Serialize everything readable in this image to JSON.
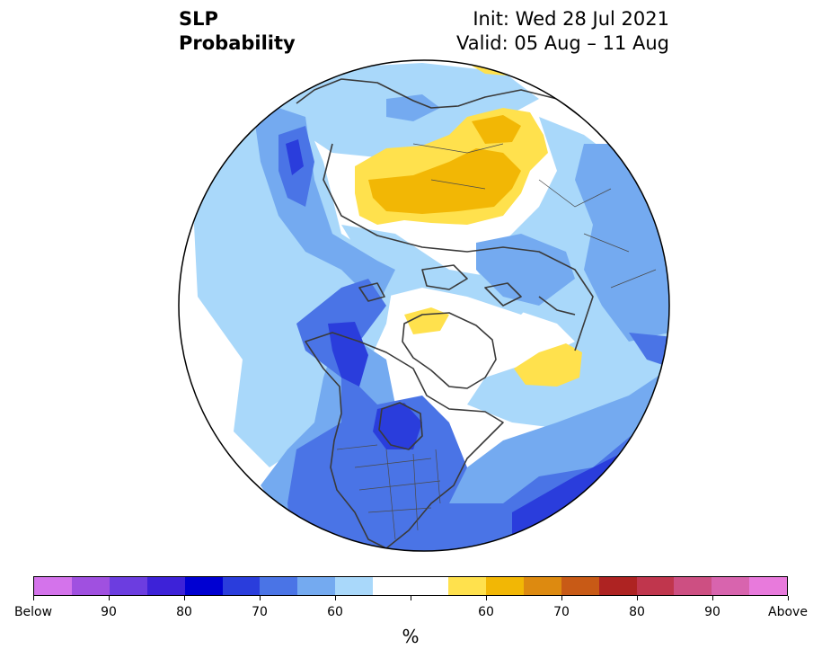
{
  "title": {
    "left_line1": "SLP",
    "left_line2": "Probability",
    "right_line1": "Init: Wed 28 Jul 2021",
    "right_line2": "Valid: 05 Aug – 11 Aug"
  },
  "colorbar": {
    "colors": [
      "#d473eb",
      "#a050e0",
      "#6c3de0",
      "#3d22d8",
      "#0000d2",
      "#2a3ddc",
      "#4a74e6",
      "#74aaf0",
      "#a9d8fa",
      "#ffffff",
      "#ffffff",
      "#ffe14d",
      "#f2b705",
      "#dd8a10",
      "#c85a16",
      "#ae2322",
      "#c0364d",
      "#cd4f82",
      "#d864ae",
      "#e87adc"
    ],
    "tick_labels": [
      "Below",
      "90",
      "80",
      "70",
      "60",
      "",
      "60",
      "70",
      "80",
      "90",
      "Above"
    ],
    "unit": "%"
  },
  "map": {
    "projection": "north-polar-stereographic",
    "field": "SLP probability",
    "features": [
      "continents",
      "national-borders",
      "us-state-borders"
    ]
  }
}
